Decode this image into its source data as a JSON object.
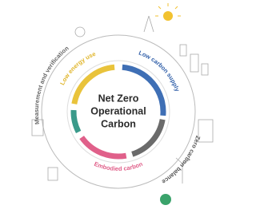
{
  "center": {
    "title": [
      "Net Zero",
      "Operational",
      "Carbon"
    ]
  },
  "segments": [
    {
      "label": "Low energy use"
    },
    {
      "label": "Low carbon supply"
    },
    {
      "label": "Zero carbon balance"
    },
    {
      "label": "Embodied carbon"
    },
    {
      "label": "Measurement and verification"
    }
  ]
}
